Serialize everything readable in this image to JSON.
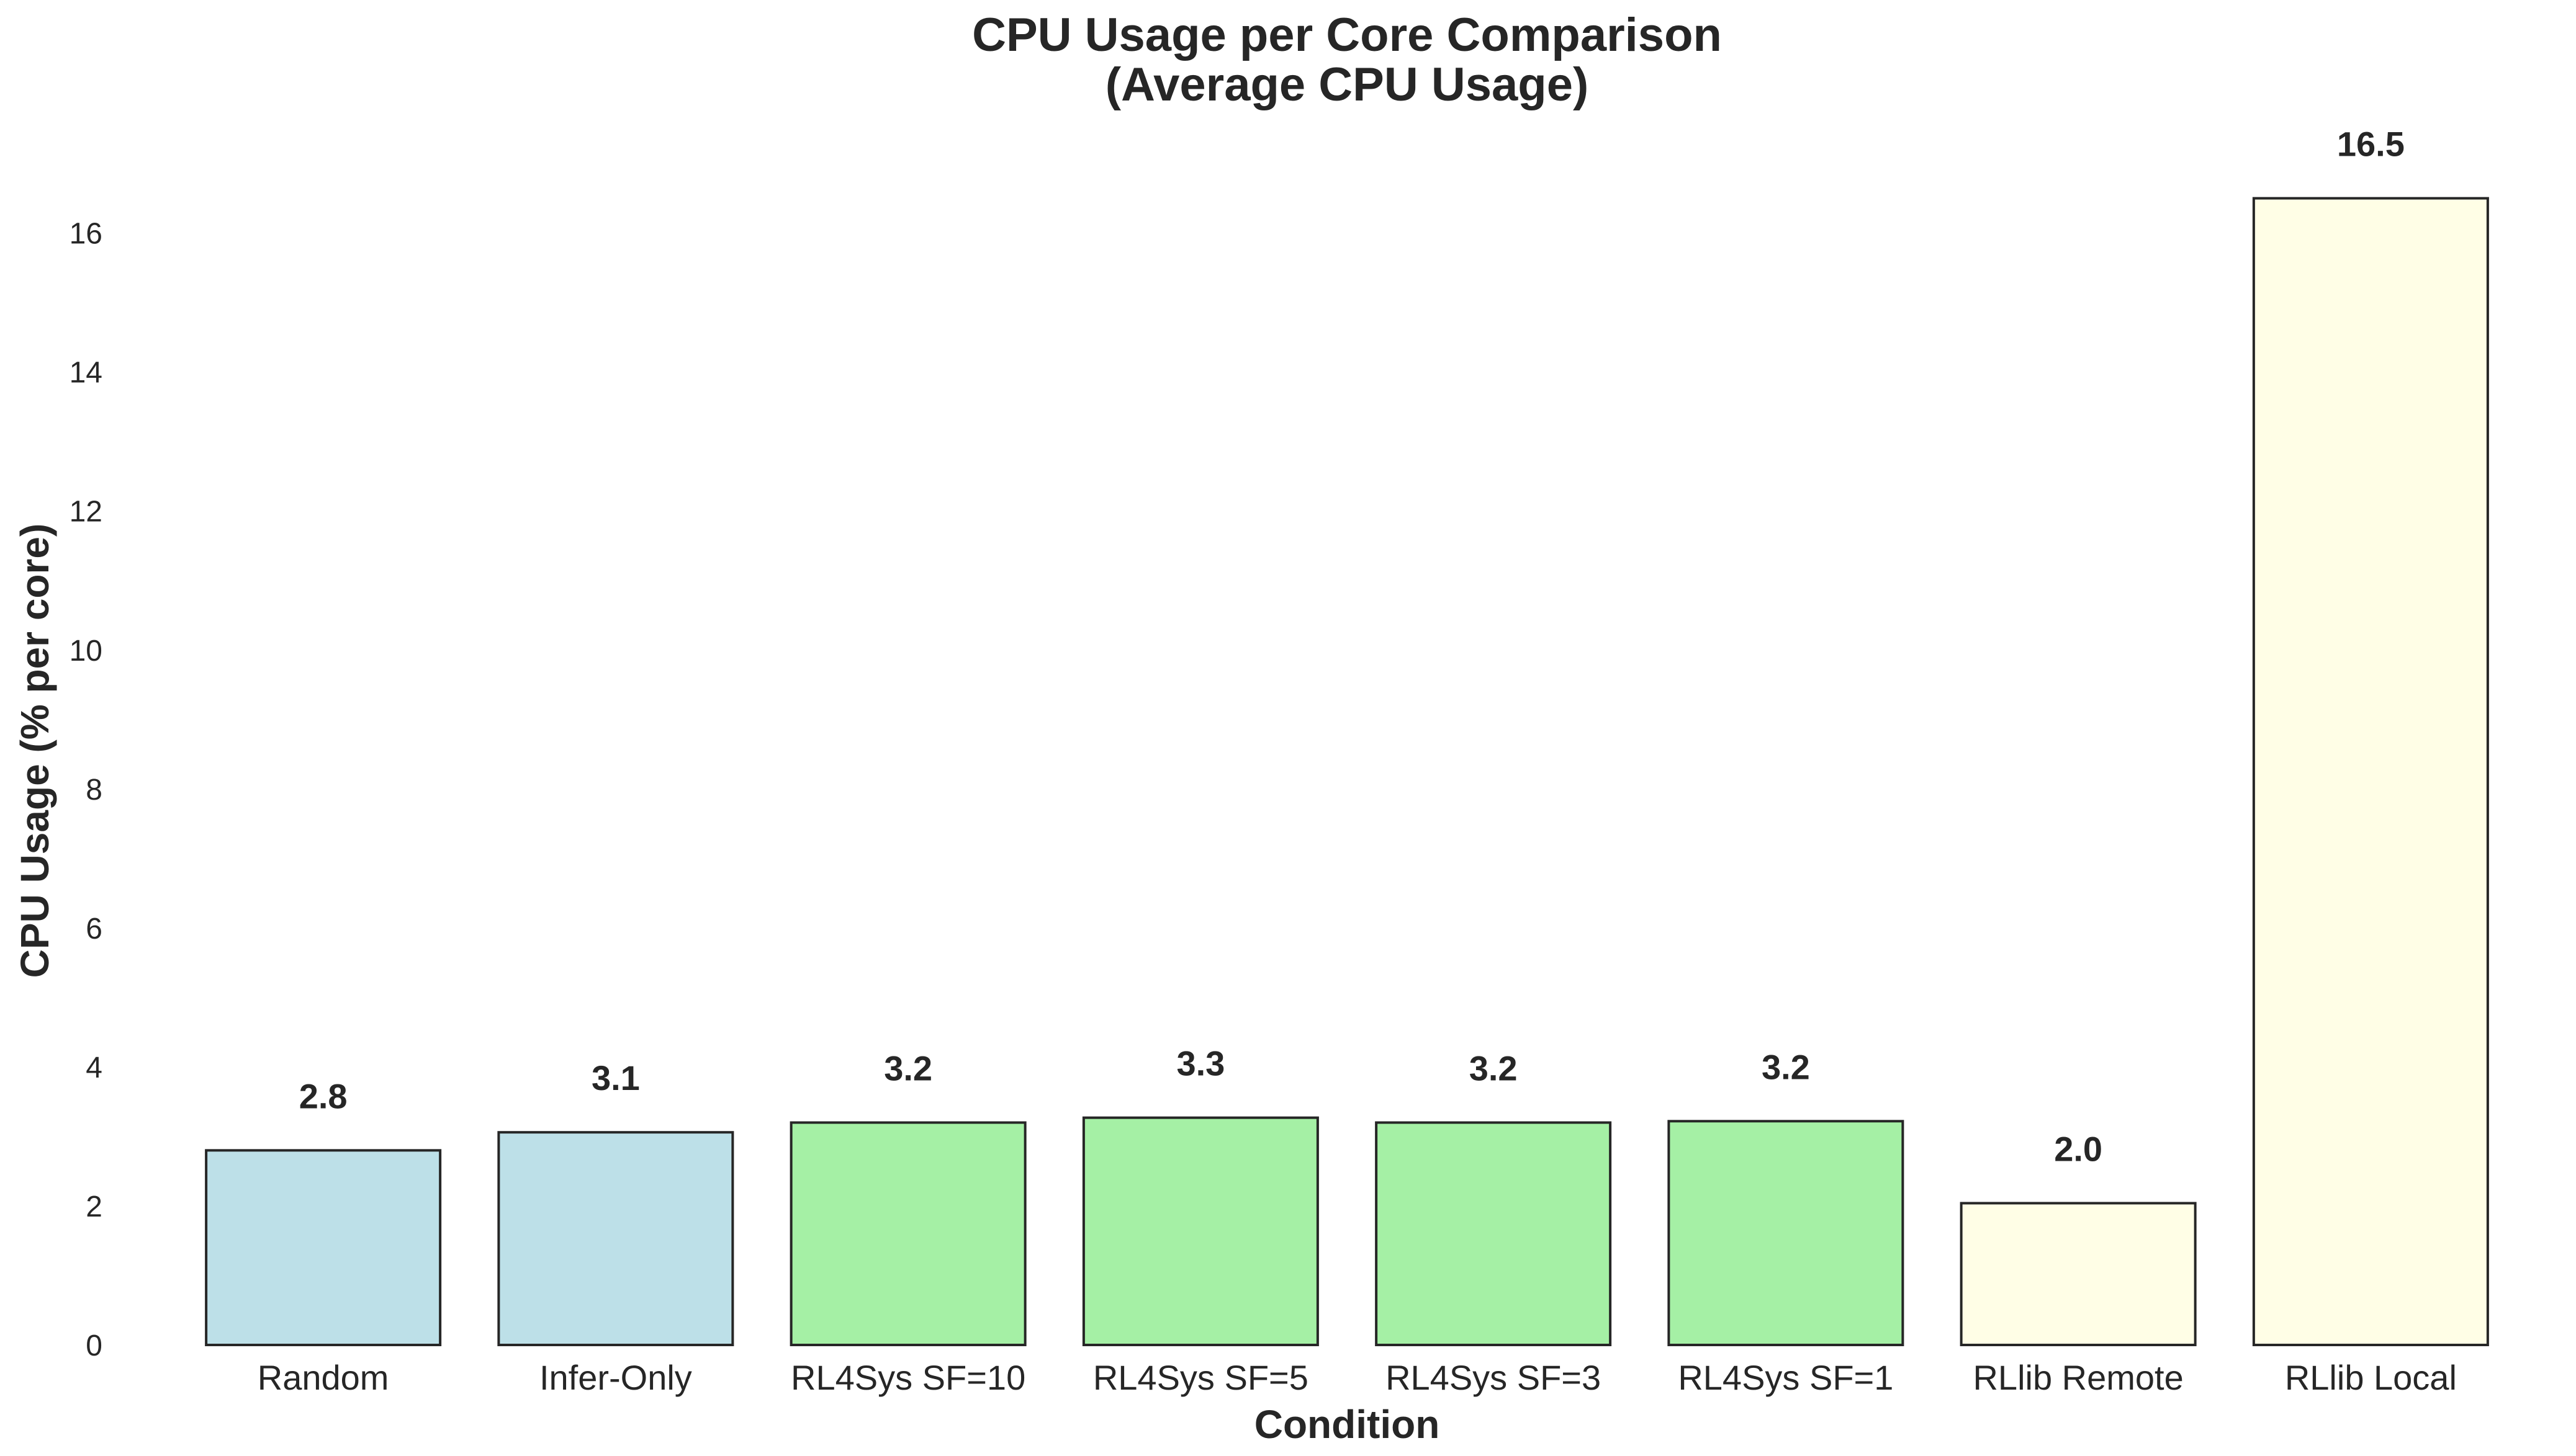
{
  "chart_data": {
    "type": "bar",
    "title": "CPU Usage per Core Comparison",
    "subtitle": "(Average CPU Usage)",
    "xlabel": "Condition",
    "ylabel": "CPU Usage (% per core)",
    "categories": [
      "Random",
      "Infer-Only",
      "RL4Sys SF=10",
      "RL4Sys SF=5",
      "RL4Sys SF=3",
      "RL4Sys SF=1",
      "RLlib Remote",
      "RLlib Local"
    ],
    "values": [
      2.8,
      3.06,
      3.2,
      3.27,
      3.2,
      3.22,
      2.04,
      16.5
    ],
    "data_labels": [
      "2.8",
      "3.1",
      "3.2",
      "3.3",
      "3.2",
      "3.2",
      "2.0",
      "16.5"
    ],
    "colors": [
      "#bde0e8",
      "#bde0e8",
      "#a5f0a5",
      "#a5f0a5",
      "#a5f0a5",
      "#a5f0a5",
      "#fffee6",
      "#fffee6"
    ],
    "yticks": [
      0,
      2,
      4,
      6,
      8,
      10,
      12,
      14,
      16
    ],
    "ylim": [
      0,
      17.3
    ],
    "grid": false,
    "legend": "none"
  }
}
